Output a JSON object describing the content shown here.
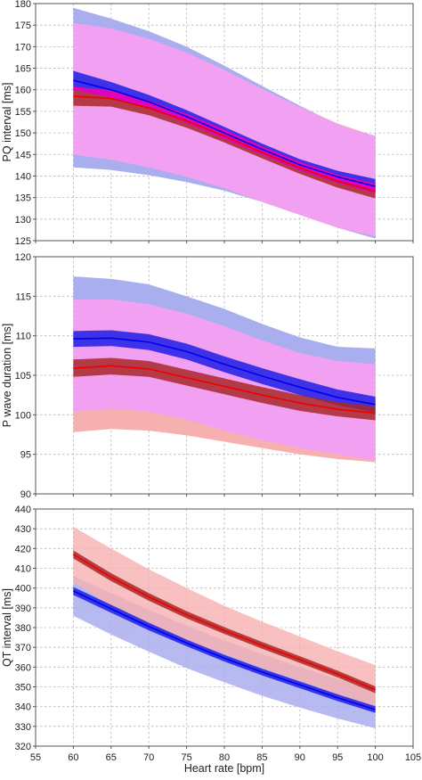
{
  "colors": {
    "blue_ci_fill": "#1f1fe6",
    "blue_band_fill": "#a9aeee",
    "blue_line": "#0000ee",
    "red_ci_fill": "#a82828",
    "red_band_fill": "#f6b0b0",
    "red_line": "#ee0000",
    "overlap_band_fill": "#f2a0f2",
    "overlap_ci_fill": "#e600c8",
    "grid": "#b8b8b8"
  },
  "chart_data": [
    {
      "type": "line",
      "title": "",
      "xlabel": "",
      "ylabel": "PQ interval [ms]",
      "xlim": [
        55,
        105
      ],
      "ylim": [
        125,
        180
      ],
      "xticks": [
        55,
        60,
        65,
        70,
        75,
        80,
        85,
        90,
        95,
        100,
        105
      ],
      "yticks": [
        125,
        130,
        135,
        140,
        145,
        150,
        155,
        160,
        165,
        170,
        175,
        180
      ],
      "grid": true,
      "series": [
        {
          "color": "blue",
          "x": [
            60,
            65,
            70,
            75,
            80,
            85,
            90,
            95,
            100
          ],
          "mean": [
            162.2,
            160.0,
            157.2,
            153.8,
            150.0,
            146.2,
            142.6,
            139.8,
            137.6
          ],
          "ci_low": [
            160.0,
            158.2,
            155.6,
            152.3,
            148.6,
            144.9,
            141.3,
            138.4,
            136.0
          ],
          "ci_high": [
            164.4,
            161.8,
            158.8,
            155.3,
            151.4,
            147.5,
            143.9,
            141.2,
            139.3
          ],
          "band_low": [
            142.0,
            141.4,
            140.2,
            138.6,
            136.6,
            134.0,
            131.0,
            128.0,
            125.5
          ],
          "band_high": [
            179.0,
            176.5,
            173.6,
            170.0,
            165.6,
            160.9,
            156.3,
            152.0,
            149.3
          ]
        },
        {
          "color": "red",
          "x": [
            60,
            65,
            70,
            75,
            80,
            85,
            90,
            95,
            100
          ],
          "mean": [
            158.5,
            158.0,
            155.8,
            152.8,
            149.3,
            145.5,
            141.9,
            138.8,
            136.5
          ],
          "ci_low": [
            156.3,
            156.1,
            154.1,
            151.2,
            147.8,
            144.1,
            140.5,
            137.3,
            134.8
          ],
          "ci_high": [
            160.7,
            159.9,
            157.5,
            154.4,
            150.8,
            146.9,
            143.3,
            140.3,
            138.2
          ],
          "band_low": [
            145.0,
            143.8,
            142.0,
            139.8,
            137.2,
            134.0,
            131.0,
            128.0,
            126.0
          ],
          "band_high": [
            175.5,
            174.2,
            171.8,
            168.6,
            164.6,
            160.2,
            156.0,
            152.2,
            149.2
          ]
        }
      ]
    },
    {
      "type": "line",
      "title": "",
      "xlabel": "",
      "ylabel": "P wave duration [ms]",
      "xlim": [
        55,
        105
      ],
      "ylim": [
        90,
        120
      ],
      "xticks": [
        55,
        60,
        65,
        70,
        75,
        80,
        85,
        90,
        95,
        100,
        105
      ],
      "yticks": [
        90,
        95,
        100,
        105,
        110,
        115,
        120
      ],
      "grid": true,
      "series": [
        {
          "color": "blue",
          "x": [
            60,
            65,
            70,
            75,
            80,
            85,
            90,
            95,
            100
          ],
          "mean": [
            109.6,
            109.7,
            109.2,
            108.0,
            106.4,
            104.9,
            103.5,
            102.2,
            101.3
          ],
          "ci_low": [
            108.6,
            108.7,
            108.2,
            107.0,
            105.4,
            103.9,
            102.5,
            101.2,
            100.3
          ],
          "ci_high": [
            110.6,
            110.7,
            110.2,
            109.0,
            107.4,
            105.9,
            104.5,
            103.2,
            102.3
          ],
          "band_low": [
            100.4,
            100.8,
            100.4,
            99.4,
            98.0,
            96.8,
            95.8,
            95.0,
            94.2
          ],
          "band_high": [
            117.5,
            117.2,
            116.5,
            115.0,
            113.4,
            111.5,
            109.8,
            108.6,
            108.4
          ]
        },
        {
          "color": "red",
          "x": [
            60,
            65,
            70,
            75,
            80,
            85,
            90,
            95,
            100
          ],
          "mean": [
            105.9,
            106.2,
            105.8,
            104.7,
            103.6,
            102.5,
            101.5,
            100.7,
            100.2
          ],
          "ci_low": [
            104.8,
            105.1,
            104.8,
            103.7,
            102.6,
            101.5,
            100.5,
            99.8,
            99.3
          ],
          "ci_high": [
            107.0,
            107.2,
            106.8,
            105.7,
            104.6,
            103.5,
            102.5,
            101.6,
            101.1
          ],
          "band_low": [
            97.8,
            98.2,
            98.0,
            97.4,
            96.6,
            95.8,
            95.0,
            94.4,
            94.0
          ],
          "band_high": [
            114.6,
            114.6,
            114.0,
            112.8,
            111.2,
            109.4,
            107.8,
            106.8,
            106.4
          ]
        }
      ]
    },
    {
      "type": "line",
      "title": "",
      "xlabel": "Heart rate [bpm]",
      "ylabel": "QT interval [ms]",
      "xlim": [
        55,
        105
      ],
      "ylim": [
        320,
        440
      ],
      "xticks": [
        55,
        60,
        65,
        70,
        75,
        80,
        85,
        90,
        95,
        100,
        105
      ],
      "yticks": [
        320,
        330,
        340,
        350,
        360,
        370,
        380,
        390,
        400,
        410,
        420,
        430,
        440
      ],
      "grid": true,
      "series": [
        {
          "color": "blue",
          "x": [
            60,
            65,
            70,
            75,
            80,
            85,
            90,
            95,
            100
          ],
          "mean": [
            398.5,
            389.5,
            380.5,
            372.2,
            364.5,
            357.5,
            351.0,
            344.5,
            338.5
          ],
          "ci_low": [
            396.5,
            387.5,
            378.6,
            370.5,
            362.8,
            355.8,
            349.3,
            342.8,
            336.8
          ],
          "ci_high": [
            400.5,
            391.5,
            382.4,
            373.9,
            366.2,
            359.2,
            352.7,
            346.2,
            340.2
          ],
          "band_low": [
            386.0,
            376.5,
            367.8,
            359.5,
            352.3,
            345.5,
            339.5,
            334.0,
            329.0
          ],
          "band_high": [
            406.0,
            397.5,
            389.0,
            381.0,
            373.5,
            366.5,
            360.0,
            354.0,
            348.5
          ]
        },
        {
          "color": "red",
          "x": [
            60,
            65,
            70,
            75,
            80,
            85,
            90,
            95,
            100
          ],
          "mean": [
            417.0,
            405.5,
            395.5,
            386.5,
            378.5,
            371.0,
            363.8,
            356.5,
            348.5
          ],
          "ci_low": [
            415.0,
            403.5,
            393.6,
            384.7,
            376.8,
            369.3,
            362.1,
            354.8,
            346.8
          ],
          "ci_high": [
            419.0,
            407.5,
            397.4,
            388.3,
            380.2,
            372.7,
            365.5,
            358.2,
            350.2
          ],
          "band_low": [
            403.0,
            391.0,
            381.5,
            373.5,
            366.5,
            359.5,
            353.0,
            346.0,
            338.0
          ],
          "band_high": [
            431.0,
            420.0,
            409.5,
            400.0,
            391.0,
            383.0,
            375.5,
            368.0,
            361.0
          ]
        }
      ]
    }
  ]
}
